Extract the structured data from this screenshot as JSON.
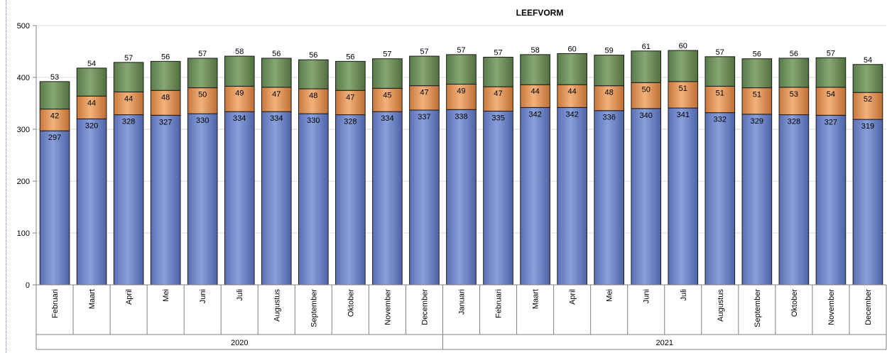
{
  "chart_data": {
    "type": "bar",
    "stacked": true,
    "title": "LEEFVORM",
    "xlabel": "",
    "ylabel": "",
    "ylim": [
      0,
      500
    ],
    "yticks": [
      0,
      100,
      200,
      300,
      400,
      500
    ],
    "grid": true,
    "legend": "none",
    "categories": [
      "Februari",
      "Maart",
      "April",
      "Mei",
      "Juni",
      "Juli",
      "Augustus",
      "September",
      "Oktober",
      "November",
      "December",
      "Januari",
      "Februari",
      "Maart",
      "April",
      "Mei",
      "Juni",
      "Juli",
      "Augustus",
      "September",
      "Oktober",
      "November",
      "December"
    ],
    "groups": [
      {
        "label": "2020",
        "count": 11
      },
      {
        "label": "2021",
        "count": 12
      }
    ],
    "series": [
      {
        "values": [
          297,
          320,
          328,
          327,
          330,
          334,
          334,
          330,
          328,
          334,
          337,
          338,
          335,
          342,
          342,
          336,
          340,
          341,
          332,
          329,
          328,
          327,
          319
        ],
        "color": "#6f87c6"
      },
      {
        "values": [
          42,
          44,
          44,
          48,
          50,
          49,
          47,
          48,
          47,
          45,
          47,
          49,
          47,
          44,
          44,
          48,
          50,
          51,
          51,
          51,
          53,
          54,
          52
        ],
        "color": "#e09a5e"
      },
      {
        "values": [
          53,
          54,
          57,
          56,
          57,
          58,
          56,
          56,
          56,
          57,
          57,
          57,
          57,
          58,
          60,
          59,
          61,
          60,
          57,
          56,
          56,
          57,
          54
        ],
        "color": "#6f8f5e"
      }
    ]
  }
}
